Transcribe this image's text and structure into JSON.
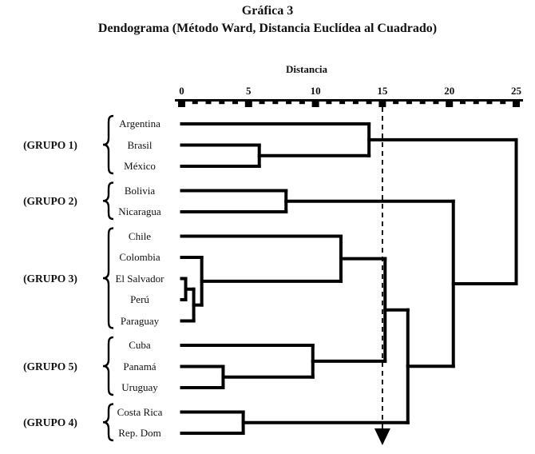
{
  "title": {
    "line1": "Gráfica 3",
    "line2": "Dendograma (Método Ward, Distancia Euclídea al Cuadrado)"
  },
  "axis": {
    "label": "Distancia",
    "ticks": [
      0,
      5,
      10,
      15,
      20,
      25
    ],
    "minor_tick_step": 1,
    "range": [
      0,
      25
    ]
  },
  "groups": [
    {
      "label": "(GRUPO 1)",
      "leaves": [
        "Argentina",
        "Brasil",
        "México"
      ]
    },
    {
      "label": "(GRUPO 2)",
      "leaves": [
        "Bolivia",
        "Nicaragua"
      ]
    },
    {
      "label": "(GRUPO 3)",
      "leaves": [
        "Chile",
        "Colombia",
        "El Salvador",
        "Perú",
        "Paraguay"
      ]
    },
    {
      "label": "(GRUPO 5)",
      "leaves": [
        "Cuba",
        "Panamá",
        "Uruguay"
      ]
    },
    {
      "label": "(GRUPO 4)",
      "leaves": [
        "Costa Rica",
        "Rep. Dom"
      ]
    }
  ],
  "chart_data": {
    "type": "dendrogram",
    "orientation": "horizontal",
    "title": "Gráfica 3",
    "subtitle": "Dendograma (Método Ward, Distancia Euclídea al Cuadrado)",
    "xlabel": "Distancia",
    "xlim": [
      0,
      25
    ],
    "grid": false,
    "leaves": [
      "Argentina",
      "Brasil",
      "México",
      "Bolivia",
      "Nicaragua",
      "Chile",
      "Colombia",
      "El Salvador",
      "Perú",
      "Paraguay",
      "Cuba",
      "Panamá",
      "Uruguay",
      "Costa Rica",
      "Rep. Dom"
    ],
    "merges": [
      {
        "id": "#1",
        "a": "Brasil",
        "b": "México",
        "distance": 5.8
      },
      {
        "id": "#2",
        "a": "Argentina",
        "b": "#1",
        "distance": 14.0
      },
      {
        "id": "#3",
        "a": "Bolivia",
        "b": "Nicaragua",
        "distance": 7.8
      },
      {
        "id": "#4",
        "a": "El Salvador",
        "b": "Perú",
        "distance": 0.3
      },
      {
        "id": "#5",
        "a": "#4",
        "b": "Paraguay",
        "distance": 0.9
      },
      {
        "id": "#6",
        "a": "Colombia",
        "b": "#5",
        "distance": 1.5
      },
      {
        "id": "#7",
        "a": "Chile",
        "b": "#6",
        "distance": 11.9
      },
      {
        "id": "#8",
        "a": "Panamá",
        "b": "Uruguay",
        "distance": 3.1
      },
      {
        "id": "#9",
        "a": "Cuba",
        "b": "#8",
        "distance": 9.8
      },
      {
        "id": "#10",
        "a": "#7",
        "b": "#9",
        "distance": 15.2
      },
      {
        "id": "#11",
        "a": "Costa Rica",
        "b": "Rep. Dom",
        "distance": 4.6
      },
      {
        "id": "#12",
        "a": "#10",
        "b": "#11",
        "distance": 16.9
      },
      {
        "id": "#13",
        "a": "#3",
        "b": "#12",
        "distance": 20.3
      },
      {
        "id": "#14",
        "a": "#2",
        "b": "#13",
        "distance": 25.0
      }
    ],
    "reference_line": {
      "distance": 15,
      "style": "dashed",
      "arrow": "down"
    }
  },
  "colors": {
    "line": "#000000",
    "background": "#ffffff",
    "text": "#111111"
  }
}
